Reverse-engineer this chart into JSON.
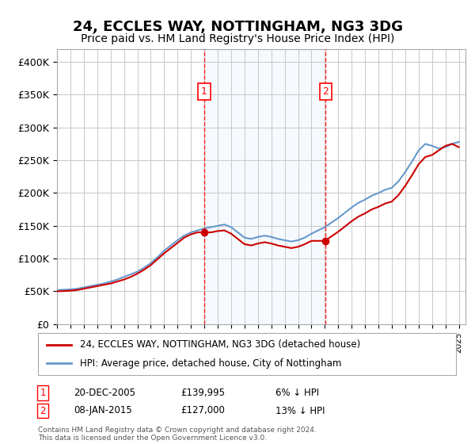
{
  "title": "24, ECCLES WAY, NOTTINGHAM, NG3 3DG",
  "subtitle": "Price paid vs. HM Land Registry's House Price Index (HPI)",
  "title_fontsize": 13,
  "subtitle_fontsize": 11,
  "ylabel_ticks": [
    "£0",
    "£50K",
    "£100K",
    "£150K",
    "£200K",
    "£250K",
    "£300K",
    "£350K",
    "£400K"
  ],
  "ytick_vals": [
    0,
    50000,
    100000,
    150000,
    200000,
    250000,
    300000,
    350000,
    400000
  ],
  "ylim": [
    0,
    420000
  ],
  "xlim_start": 1995.0,
  "xlim_end": 2025.5,
  "marker1_x": 2006.0,
  "marker1_y": 139995,
  "marker1_label": "1",
  "marker2_x": 2015.05,
  "marker2_y": 127000,
  "marker2_label": "2",
  "shade_x_start": 2006.0,
  "shade_x_end": 2015.05,
  "legend_line1": "24, ECCLES WAY, NOTTINGHAM, NG3 3DG (detached house)",
  "legend_line2": "HPI: Average price, detached house, City of Nottingham",
  "legend_line1_color": "#cc0000",
  "legend_line2_color": "#6699cc",
  "table_row1": [
    "1",
    "20-DEC-2005",
    "£139,995",
    "6% ↓ HPI"
  ],
  "table_row2": [
    "2",
    "08-JAN-2015",
    "£127,000",
    "13% ↓ HPI"
  ],
  "footer": "Contains HM Land Registry data © Crown copyright and database right 2024.\nThis data is licensed under the Open Government Licence v3.0.",
  "bg_color": "#ffffff",
  "plot_bg_color": "#ffffff",
  "grid_color": "#cccccc",
  "shade_color": "#ddeeff"
}
